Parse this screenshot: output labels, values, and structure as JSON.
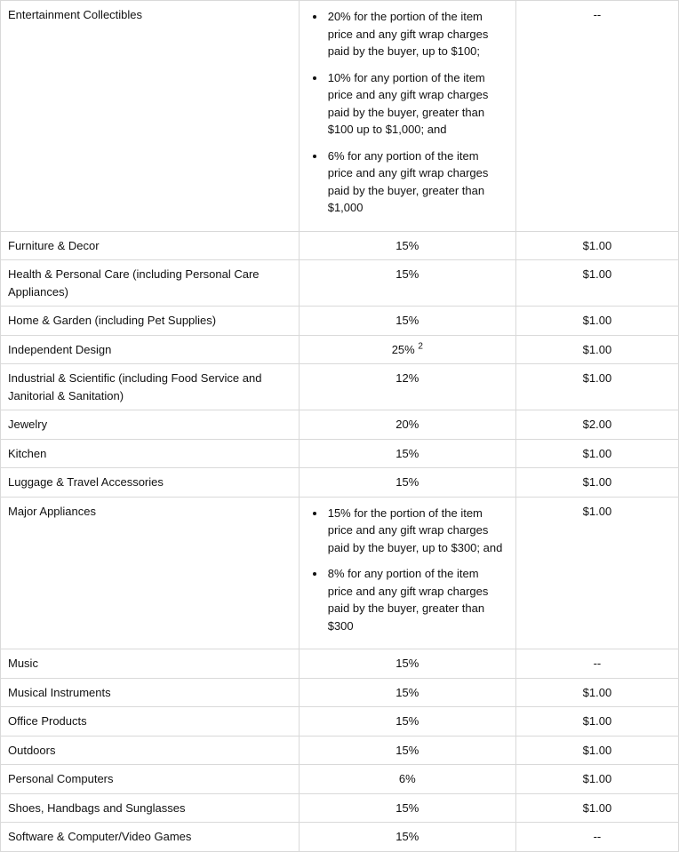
{
  "table": {
    "columns": [
      "category",
      "referral_fee",
      "minimum_fee"
    ],
    "column_widths_pct": [
      44,
      32,
      24
    ],
    "border_color": "#d9d9d9",
    "font_family": "Arial",
    "font_size_pt": 10,
    "text_color": "#111111",
    "background_color": "#ffffff",
    "rows": [
      {
        "category": "Entertainment Collectibles",
        "fee_type": "list",
        "fee_items": [
          "20% for the portion of the item price and any gift wrap charges paid by the buyer, up to $100;",
          "10% for any portion of the item price and any gift wrap charges paid by the buyer, greater than $100 up to $1,000; and",
          "6% for any portion of the item price and any gift wrap charges paid by the buyer, greater than $1,000"
        ],
        "minimum": "--"
      },
      {
        "category": "Furniture & Decor",
        "fee_type": "text",
        "fee": "15%",
        "minimum": "$1.00"
      },
      {
        "category": "Health & Personal Care (including Personal Care Appliances)",
        "fee_type": "text",
        "fee": "15%",
        "minimum": "$1.00"
      },
      {
        "category": "Home & Garden (including Pet Supplies)",
        "fee_type": "text",
        "fee": "15%",
        "minimum": "$1.00"
      },
      {
        "category": "Independent Design",
        "fee_type": "text",
        "fee": "25%",
        "fee_sup": "2",
        "minimum": "$1.00"
      },
      {
        "category": "Industrial & Scientific (including Food Service and Janitorial & Sanitation)",
        "fee_type": "text",
        "fee": "12%",
        "minimum": "$1.00"
      },
      {
        "category": "Jewelry",
        "fee_type": "text",
        "fee": "20%",
        "minimum": "$2.00"
      },
      {
        "category": "Kitchen",
        "fee_type": "text",
        "fee": "15%",
        "minimum": "$1.00"
      },
      {
        "category": "Luggage & Travel Accessories",
        "fee_type": "text",
        "fee": "15%",
        "minimum": "$1.00"
      },
      {
        "category": "Major Appliances",
        "fee_type": "list",
        "fee_items": [
          "15% for the portion of the item price and any gift wrap charges paid by the buyer, up to $300; and",
          "8% for any portion of the item price and any gift wrap charges paid by the buyer, greater than $300"
        ],
        "minimum": "$1.00"
      },
      {
        "category": "Music",
        "fee_type": "text",
        "fee": "15%",
        "minimum": "--"
      },
      {
        "category": "Musical Instruments",
        "fee_type": "text",
        "fee": "15%",
        "minimum": "$1.00"
      },
      {
        "category": "Office Products",
        "fee_type": "text",
        "fee": "15%",
        "minimum": "$1.00"
      },
      {
        "category": "Outdoors",
        "fee_type": "text",
        "fee": "15%",
        "minimum": "$1.00"
      },
      {
        "category": "Personal Computers",
        "fee_type": "text",
        "fee": "6%",
        "minimum": "$1.00"
      },
      {
        "category": "Shoes, Handbags and Sunglasses",
        "fee_type": "text",
        "fee": "15%",
        "minimum": "$1.00"
      },
      {
        "category": "Software & Computer/Video Games",
        "fee_type": "text",
        "fee": "15%",
        "minimum": "--"
      }
    ]
  }
}
